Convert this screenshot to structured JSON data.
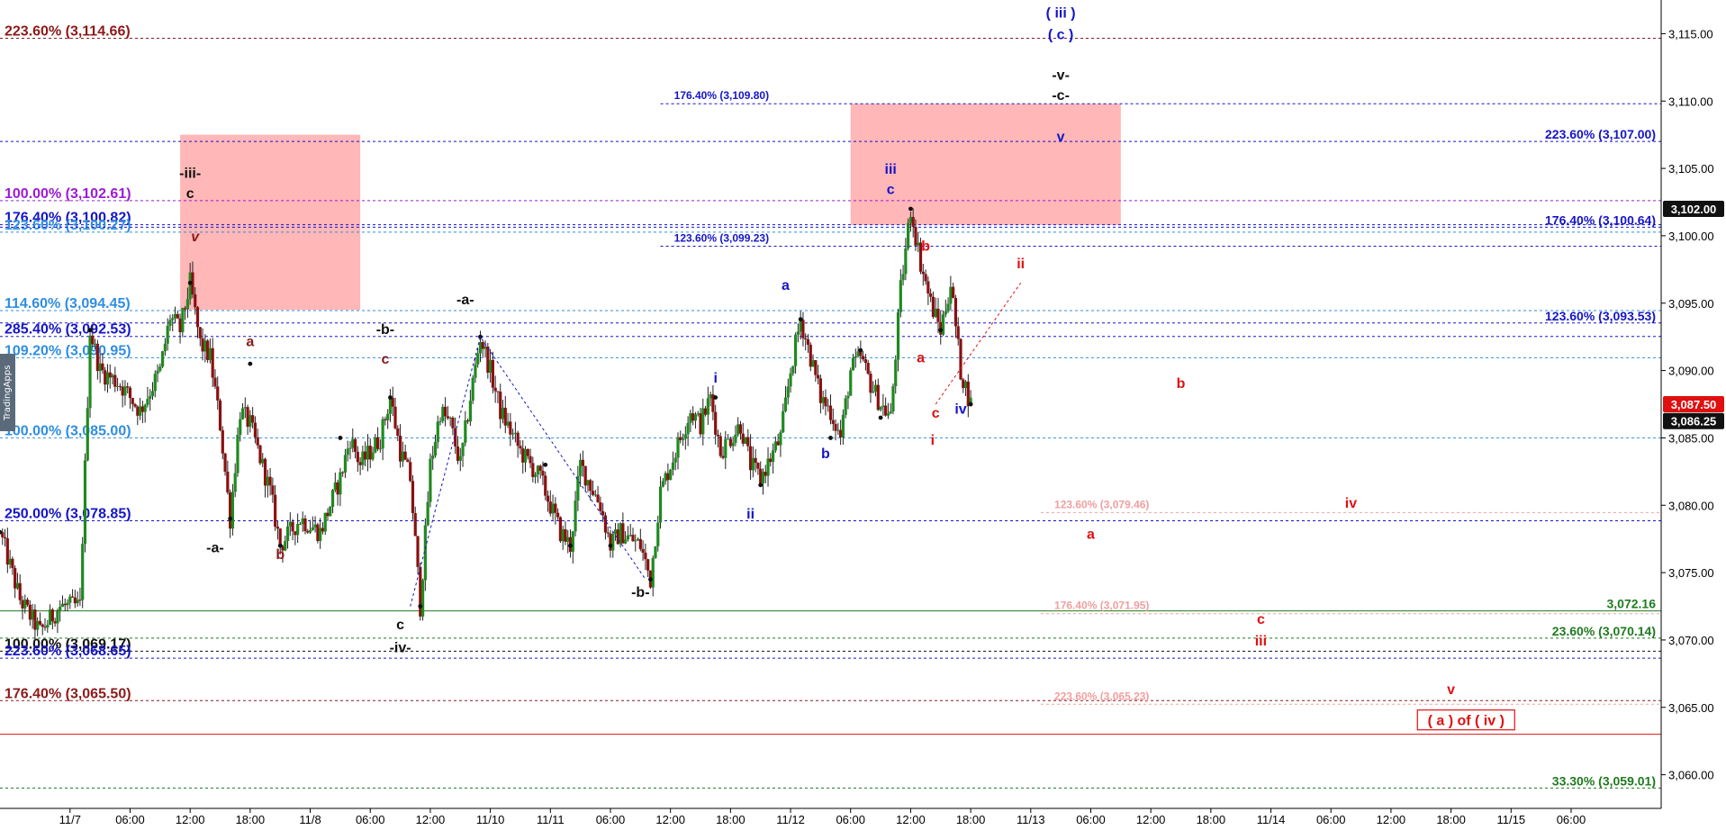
{
  "app": {
    "side_tab": "TradingApps"
  },
  "colors": {
    "up": "#1f8a1f",
    "down": "#8a1010",
    "blue": "#1515c8",
    "darkred": "#8b1a1a",
    "red": "#e01010",
    "lightblue": "#2f8ee0",
    "purple": "#9b1cd6",
    "green": "#1f7a1f",
    "pink": "#f0a0a0",
    "black": "#111111",
    "zone": "#ffb3b3"
  },
  "chart_data": {
    "type": "candlestick",
    "y_axis": {
      "min": 3057.5,
      "max": 3117.5,
      "side": "right",
      "grid": false,
      "ticks": [
        "3,060.00",
        "3,065.00",
        "3,070.00",
        "3,075.00",
        "3,080.00",
        "3,085.00",
        "3,090.00",
        "3,095.00",
        "3,100.00",
        "3,105.00",
        "3,110.00",
        "3,115.00"
      ],
      "tick_values": [
        3060,
        3065,
        3070,
        3075,
        3080,
        3085,
        3090,
        3095,
        3100,
        3105,
        3110,
        3115
      ]
    },
    "x_axis": {
      "min": 0,
      "max": 166,
      "labels": [
        {
          "x": 7,
          "t": "11/7"
        },
        {
          "x": 13,
          "t": "06:00"
        },
        {
          "x": 19,
          "t": "12:00"
        },
        {
          "x": 25,
          "t": "18:00"
        },
        {
          "x": 31,
          "t": "11/8"
        },
        {
          "x": 37,
          "t": "06:00"
        },
        {
          "x": 43,
          "t": "12:00"
        },
        {
          "x": 49,
          "t": "11/10"
        },
        {
          "x": 55,
          "t": "11/11"
        },
        {
          "x": 61,
          "t": "06:00"
        },
        {
          "x": 67,
          "t": "12:00"
        },
        {
          "x": 73,
          "t": "18:00"
        },
        {
          "x": 79,
          "t": "11/12"
        },
        {
          "x": 85,
          "t": "06:00"
        },
        {
          "x": 91,
          "t": "12:00"
        },
        {
          "x": 97,
          "t": "18:00"
        },
        {
          "x": 103,
          "t": "11/13"
        },
        {
          "x": 109,
          "t": "06:00"
        },
        {
          "x": 115,
          "t": "12:00"
        },
        {
          "x": 121,
          "t": "18:00"
        },
        {
          "x": 127,
          "t": "11/14"
        },
        {
          "x": 133,
          "t": "06:00"
        },
        {
          "x": 139,
          "t": "12:00"
        },
        {
          "x": 145,
          "t": "18:00"
        },
        {
          "x": 151,
          "t": "11/15"
        },
        {
          "x": 157,
          "t": "06:00"
        }
      ]
    },
    "price_path": [
      [
        0,
        3078
      ],
      [
        2,
        3073
      ],
      [
        4,
        3070.6
      ],
      [
        6,
        3072.5
      ],
      [
        8,
        3072.5
      ],
      [
        9,
        3093
      ],
      [
        10,
        3090
      ],
      [
        12,
        3089
      ],
      [
        14,
        3087
      ],
      [
        16,
        3090
      ],
      [
        17,
        3094
      ],
      [
        18,
        3093
      ],
      [
        19,
        3096.5
      ],
      [
        20,
        3092
      ],
      [
        21,
        3091
      ],
      [
        22,
        3086
      ],
      [
        23,
        3079
      ],
      [
        24,
        3087
      ],
      [
        25,
        3086
      ],
      [
        27,
        3081
      ],
      [
        28,
        3077
      ],
      [
        30,
        3079
      ],
      [
        32,
        3078
      ],
      [
        34,
        3082
      ],
      [
        35,
        3085
      ],
      [
        36,
        3083
      ],
      [
        38,
        3085
      ],
      [
        39,
        3088
      ],
      [
        40,
        3084
      ],
      [
        41,
        3082
      ],
      [
        42,
        3072.5
      ],
      [
        43,
        3083
      ],
      [
        44,
        3087
      ],
      [
        45,
        3086
      ],
      [
        46,
        3083
      ],
      [
        47,
        3088
      ],
      [
        48,
        3092.5
      ],
      [
        49,
        3090
      ],
      [
        50,
        3087
      ],
      [
        52,
        3084
      ],
      [
        54,
        3082
      ],
      [
        56,
        3078
      ],
      [
        57,
        3077
      ],
      [
        58,
        3083
      ],
      [
        60,
        3080
      ],
      [
        61,
        3077
      ],
      [
        62,
        3078
      ],
      [
        64,
        3077
      ],
      [
        65,
        3074.5
      ],
      [
        66,
        3081
      ],
      [
        67,
        3083
      ],
      [
        69,
        3087
      ],
      [
        70,
        3086
      ],
      [
        71,
        3088
      ],
      [
        72,
        3084
      ],
      [
        74,
        3086
      ],
      [
        75,
        3083
      ],
      [
        76,
        3082
      ],
      [
        78,
        3085
      ],
      [
        79,
        3090
      ],
      [
        80,
        3093.8
      ],
      [
        81,
        3091
      ],
      [
        82,
        3088
      ],
      [
        83,
        3087
      ],
      [
        84,
        3085
      ],
      [
        85,
        3090
      ],
      [
        86,
        3091
      ],
      [
        87,
        3089
      ],
      [
        88,
        3087.5
      ],
      [
        89,
        3086.5
      ],
      [
        90,
        3096
      ],
      [
        91,
        3102
      ],
      [
        92,
        3098
      ],
      [
        93,
        3095
      ],
      [
        94,
        3093
      ],
      [
        95,
        3096.5
      ],
      [
        96,
        3090
      ],
      [
        97,
        3087.5
      ]
    ],
    "current_price": "3,087.50",
    "current_price_value": 3087.5,
    "last_close": "3,086.25",
    "last_close_value": 3086.25,
    "tag_3102": "3,102.00",
    "tag_3102_value": 3102,
    "zones": [
      {
        "x1": 18,
        "x2": 36,
        "y1": 3094.5,
        "y2": 3107.5
      },
      {
        "x1": 85,
        "x2": 112,
        "y1": 3100.8,
        "y2": 3109.8
      }
    ],
    "levels": [
      {
        "y": 3114.66,
        "text": "223.60% (3,114.66)",
        "color": "darkred",
        "style": "dot",
        "x1": 0,
        "x2": 166,
        "lx": 0,
        "pos": "left"
      },
      {
        "y": 3109.8,
        "text": "176.40% (3,109.80)",
        "color": "blue",
        "style": "dot",
        "x1": 66,
        "x2": 166,
        "lx": 67,
        "pos": "small"
      },
      {
        "y": 3107.0,
        "text": "223.60% (3,107.00)",
        "color": "blue",
        "style": "dot",
        "x1": 0,
        "x2": 166,
        "lx": 164,
        "pos": "right"
      },
      {
        "y": 3102.61,
        "text": "100.00% (3,102.61)",
        "color": "purple",
        "style": "dot",
        "x1": 0,
        "x2": 166,
        "lx": 0,
        "pos": "left"
      },
      {
        "y": 3100.82,
        "text": "176.40% (3,100.82)",
        "color": "blue",
        "style": "dot",
        "x1": 0,
        "x2": 166,
        "lx": 0,
        "pos": "left"
      },
      {
        "y": 3100.27,
        "text": "123.60% (3,100.27)",
        "color": "lightblue",
        "style": "dot",
        "x1": 0,
        "x2": 166,
        "lx": 0,
        "pos": "left"
      },
      {
        "y": 3100.64,
        "text": "176.40% (3,100.64)",
        "color": "blue",
        "style": "dot",
        "x1": 0,
        "x2": 166,
        "lx": 164,
        "pos": "right"
      },
      {
        "y": 3099.23,
        "text": "123.60% (3,099.23)",
        "color": "blue",
        "style": "dot",
        "x1": 66,
        "x2": 166,
        "lx": 67,
        "pos": "small"
      },
      {
        "y": 3094.45,
        "text": "114.60% (3,094.45)",
        "color": "lightblue",
        "style": "dot",
        "x1": 0,
        "x2": 166,
        "lx": 0,
        "pos": "left"
      },
      {
        "y": 3093.53,
        "text": "123.60% (3,093.53)",
        "color": "blue",
        "style": "dot",
        "x1": 0,
        "x2": 166,
        "lx": 164,
        "pos": "right"
      },
      {
        "y": 3092.53,
        "text": "285.40% (3,092.53)",
        "color": "blue",
        "style": "dot",
        "x1": 0,
        "x2": 166,
        "lx": 0,
        "pos": "left"
      },
      {
        "y": 3090.95,
        "text": "109.20% (3,090.95)",
        "color": "lightblue",
        "style": "dot",
        "x1": 0,
        "x2": 166,
        "lx": 0,
        "pos": "left"
      },
      {
        "y": 3085.0,
        "text": "100.00% (3,085.00)",
        "color": "lightblue",
        "style": "dot",
        "x1": 0,
        "x2": 166,
        "lx": 0,
        "pos": "left"
      },
      {
        "y": 3079.46,
        "text": "123.60% (3,079.46)",
        "color": "pink",
        "style": "dot",
        "x1": 104,
        "x2": 166,
        "lx": 105,
        "pos": "small"
      },
      {
        "y": 3078.85,
        "text": "250.00% (3,078.85)",
        "color": "blue",
        "style": "dot",
        "x1": 0,
        "x2": 166,
        "lx": 0,
        "pos": "left"
      },
      {
        "y": 3072.16,
        "text": "3,072.16",
        "color": "green",
        "style": "solid",
        "x1": 0,
        "x2": 166,
        "lx": 164,
        "pos": "right"
      },
      {
        "y": 3071.95,
        "text": "176.40% (3,071.95)",
        "color": "pink",
        "style": "dot",
        "x1": 104,
        "x2": 166,
        "lx": 105,
        "pos": "small"
      },
      {
        "y": 3070.14,
        "text": "23.60% (3,070.14)",
        "color": "green",
        "style": "dot",
        "x1": 0,
        "x2": 166,
        "lx": 164,
        "pos": "right"
      },
      {
        "y": 3069.17,
        "text": "100.00% (3,069.17)",
        "color": "black",
        "style": "dot",
        "x1": 0,
        "x2": 166,
        "lx": 0,
        "pos": "left"
      },
      {
        "y": 3068.65,
        "text": "223.60% (3,068.65)",
        "color": "blue",
        "style": "dot",
        "x1": 0,
        "x2": 166,
        "lx": 0,
        "pos": "left"
      },
      {
        "y": 3065.5,
        "text": "176.40% (3,065.50)",
        "color": "darkred",
        "style": "dot",
        "x1": 0,
        "x2": 166,
        "lx": 0,
        "pos": "left"
      },
      {
        "y": 3065.23,
        "text": "223.60% (3,065.23)",
        "color": "pink",
        "style": "dot",
        "x1": 104,
        "x2": 166,
        "lx": 105,
        "pos": "small"
      },
      {
        "y": 3063.0,
        "text": "",
        "color": "red",
        "style": "solid",
        "x1": 0,
        "x2": 166,
        "lx": 0,
        "pos": "none"
      },
      {
        "y": 3059.01,
        "text": "33.30% (3,059.01)",
        "color": "green",
        "style": "dot",
        "x1": 0,
        "x2": 166,
        "lx": 164,
        "pos": "right"
      }
    ],
    "wave_labels": [
      {
        "x": 106,
        "y": 3116.2,
        "text": "( iii )",
        "color": "blue"
      },
      {
        "x": 106,
        "y": 3114.6,
        "text": "( c )",
        "color": "blue"
      },
      {
        "x": 106,
        "y": 3111.6,
        "text": "-v-",
        "color": "black"
      },
      {
        "x": 106,
        "y": 3110.1,
        "text": "-c-",
        "color": "black"
      },
      {
        "x": 106,
        "y": 3107.0,
        "text": "v",
        "color": "blue"
      },
      {
        "x": 89,
        "y": 3104.6,
        "text": "iii",
        "color": "blue"
      },
      {
        "x": 89,
        "y": 3103.1,
        "text": "c",
        "color": "blue"
      },
      {
        "x": 19,
        "y": 3104.3,
        "text": "-iii-",
        "color": "black"
      },
      {
        "x": 19,
        "y": 3102.8,
        "text": "c",
        "color": "black"
      },
      {
        "x": 19.5,
        "y": 3099.6,
        "text": "v",
        "color": "darkred",
        "italic": true
      },
      {
        "x": 25,
        "y": 3091.8,
        "text": "a",
        "color": "darkred"
      },
      {
        "x": 38.5,
        "y": 3092.7,
        "text": "-b-",
        "color": "black"
      },
      {
        "x": 38.5,
        "y": 3090.5,
        "text": "c",
        "color": "darkred"
      },
      {
        "x": 46.5,
        "y": 3094.9,
        "text": "-a-",
        "color": "black"
      },
      {
        "x": 21.5,
        "y": 3076.5,
        "text": "-a-",
        "color": "black"
      },
      {
        "x": 28,
        "y": 3076.0,
        "text": "b",
        "color": "darkred"
      },
      {
        "x": 40,
        "y": 3070.8,
        "text": "c",
        "color": "black"
      },
      {
        "x": 40,
        "y": 3069.1,
        "text": "-iv-",
        "color": "black"
      },
      {
        "x": 64,
        "y": 3073.2,
        "text": "-b-",
        "color": "black"
      },
      {
        "x": 71.5,
        "y": 3089.1,
        "text": "i",
        "color": "blue"
      },
      {
        "x": 75,
        "y": 3079.0,
        "text": "ii",
        "color": "blue"
      },
      {
        "x": 78.5,
        "y": 3096.0,
        "text": "a",
        "color": "blue"
      },
      {
        "x": 82.5,
        "y": 3083.5,
        "text": "b",
        "color": "blue"
      },
      {
        "x": 92.5,
        "y": 3098.9,
        "text": "b",
        "color": "red"
      },
      {
        "x": 92,
        "y": 3090.6,
        "text": "a",
        "color": "red"
      },
      {
        "x": 93.5,
        "y": 3086.5,
        "text": "c",
        "color": "red"
      },
      {
        "x": 93.2,
        "y": 3084.5,
        "text": "i",
        "color": "red"
      },
      {
        "x": 96,
        "y": 3086.8,
        "text": "iv",
        "color": "blue"
      },
      {
        "x": 102,
        "y": 3097.6,
        "text": "ii",
        "color": "red"
      },
      {
        "x": 118,
        "y": 3088.7,
        "text": "b",
        "color": "red"
      },
      {
        "x": 109,
        "y": 3077.5,
        "text": "a",
        "color": "red"
      },
      {
        "x": 135,
        "y": 3079.8,
        "text": "iv",
        "color": "red"
      },
      {
        "x": 126,
        "y": 3071.2,
        "text": "c",
        "color": "red"
      },
      {
        "x": 126,
        "y": 3069.6,
        "text": "iii",
        "color": "red"
      },
      {
        "x": 145,
        "y": 3066.0,
        "text": "v",
        "color": "red"
      }
    ],
    "boxed_label": {
      "x": 146.5,
      "y": 3064.0,
      "text": "( a ) of ( iv )",
      "color": "red"
    },
    "dashed_paths": [
      {
        "color": "blue",
        "points": [
          [
            41,
            3072.5
          ],
          [
            48,
            3092.5
          ],
          [
            64.5,
            3074.5
          ]
        ]
      },
      {
        "color": "red",
        "points": [
          [
            93.5,
            3087.5
          ],
          [
            102,
            3096.5
          ]
        ]
      }
    ]
  }
}
